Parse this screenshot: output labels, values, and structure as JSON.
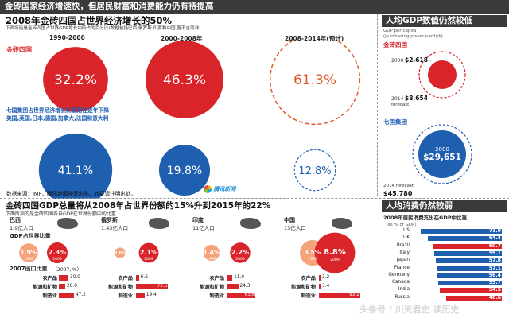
{
  "header": {
    "title": "金砖国家经济增速快，但居民财富和消费能力仍有待提高"
  },
  "growth": {
    "title": "2008年金砖四国占世界经济增长的50%",
    "subtitle": "下面所指是金砖四国占世界GDP增长中所占的百分比(数据包括巴西,俄罗斯,印度和中国,暂不含南非)",
    "periods": [
      "1990-2000",
      "2000-2008年",
      "2008-2014年(预计)"
    ],
    "brics_label": "金砖四国",
    "brics_values": [
      "32.2%",
      "46.3%",
      "61.3%"
    ],
    "g7_label": "七国集团占世界经济增长比重则在逐年下降",
    "g7_members": "美国,英国,日本,德国,加拿大,法国和意大利",
    "g7_values": [
      "41.1%",
      "19.8%",
      "12.8%"
    ],
    "source": "数据来源：IMF，腾讯新闻独家出品，转载请注明出处。",
    "logo_text": "腾讯新闻"
  },
  "gdp_pc": {
    "title": "人均GDP数值仍然较低",
    "unit": "GDP per capita\n(purchasing power parity$)",
    "brics_label": "金砖四国",
    "brics_2000_label": "2000",
    "brics_2000": "$2,618",
    "brics_2014_label": "2014\nforecast",
    "brics_2014": "$8,654",
    "g7_label": "七国集团",
    "g7_2000_label": "2000",
    "g7_2000": "$29,651",
    "g7_2014_label": "2014 forecast",
    "g7_2014": "$45,780"
  },
  "share": {
    "title": "金砖四国GDP总量将从2008年占世界份额的15%升到2015年的22%",
    "subtitle": "下面所指的是金砖四国各自GDP在世界份额中的比重",
    "gdp_share_label": "GDP占世界比重",
    "industry_title": "2007出口比重",
    "industry_unit": "（2007, %）",
    "countries": [
      {
        "name": "巴西",
        "pop": "1.9亿人口",
        "v1999": "1.9%",
        "v2009": "2.3%",
        "y1": "1999",
        "y2": "2009",
        "ind": [
          [
            "农产品",
            "30.0"
          ],
          [
            "能源和矿物",
            "20.0"
          ],
          [
            "制造业",
            "47.2"
          ]
        ]
      },
      {
        "name": "俄罗斯",
        "pop": "1.43亿人口",
        "v1999": "0.6%",
        "v2009": "2.1%",
        "y1": "1999",
        "y2": "2009",
        "ind": [
          [
            "农产品",
            "6.6"
          ],
          [
            "能源和矿物",
            "72.5"
          ],
          [
            "制造业",
            "19.4"
          ]
        ]
      },
      {
        "name": "印度",
        "pop": "11亿人口",
        "v1999": "1.4%",
        "v2009": "2.2%",
        "y1": "1999",
        "y2": "2009",
        "ind": [
          [
            "农产品",
            "11.0"
          ],
          [
            "能源和矿物",
            "24.3"
          ],
          [
            "制造业",
            "63.6"
          ]
        ]
      },
      {
        "name": "中国",
        "pop": "13亿人口",
        "v1999": "3.5%",
        "v2009": "8.8%",
        "y1": "1999",
        "y2": "2009",
        "ind": [
          [
            "农产品",
            "3.2"
          ],
          [
            "能源和矿物",
            "3.4"
          ],
          [
            "制造业",
            "93.2"
          ]
        ]
      }
    ]
  },
  "consumption": {
    "title": "人均消费仍然较弱",
    "subtitle": "2008年居民消费支出在GDP中比重",
    "unit": "（as % of GDP）",
    "rows": [
      [
        "US",
        "71.0"
      ],
      [
        "UK",
        "64.4"
      ],
      [
        "Brazil",
        "60.7"
      ],
      [
        "Italy",
        "59.1"
      ],
      [
        "Japan",
        "57.8"
      ],
      [
        "France",
        "57.1"
      ],
      [
        "Germany",
        "56.4"
      ],
      [
        "Canada",
        "55.7"
      ],
      [
        "India",
        "54.5"
      ],
      [
        "Russia",
        "48.6"
      ]
    ]
  },
  "watermark": "头条号 / 川天君史 读历史",
  "chart_data": [
    {
      "type": "bar",
      "title": "2008年金砖四国占世界经济增长的50%",
      "categories": [
        "1990-2000",
        "2000-2008年",
        "2008-2014年(预计)"
      ],
      "series": [
        {
          "name": "金砖四国",
          "values": [
            32.2,
            46.3,
            61.3
          ]
        },
        {
          "name": "七国集团",
          "values": [
            41.1,
            19.8,
            12.8
          ]
        }
      ]
    },
    {
      "type": "bar",
      "title": "人均GDP数值仍然较低",
      "categories": [
        "2000",
        "2014 forecast"
      ],
      "series": [
        {
          "name": "金砖四国",
          "values": [
            2618,
            8654
          ]
        },
        {
          "name": "七国集团",
          "values": [
            29651,
            45780
          ]
        }
      ]
    },
    {
      "type": "bar",
      "title": "GDP占世界比重",
      "categories": [
        "巴西",
        "俄罗斯",
        "印度",
        "中国"
      ],
      "series": [
        {
          "name": "1999",
          "values": [
            1.9,
            0.6,
            1.4,
            3.5
          ]
        },
        {
          "name": "2009",
          "values": [
            2.3,
            2.1,
            2.2,
            8.8
          ]
        }
      ]
    },
    {
      "type": "bar",
      "title": "2008年居民消费支出在GDP中比重",
      "categories": [
        "US",
        "UK",
        "Brazil",
        "Italy",
        "Japan",
        "France",
        "Germany",
        "Canada",
        "India",
        "Russia"
      ],
      "values": [
        71.0,
        64.4,
        60.7,
        59.1,
        57.8,
        57.1,
        56.4,
        55.7,
        54.5,
        48.6
      ]
    }
  ]
}
